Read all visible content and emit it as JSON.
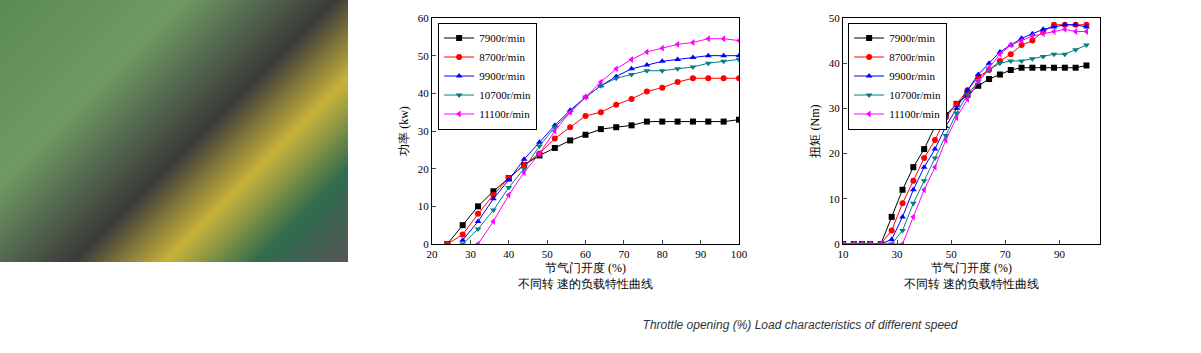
{
  "caption": "Throttle opening (%)  Load characteristics of different speed",
  "chart_data": [
    {
      "type": "line",
      "xlabel": "节气门开度 (%)",
      "subtitle": "不同转 速的负载特性曲线",
      "ylabel": "功率 (kw)",
      "x": [
        24,
        28,
        32,
        36,
        40,
        44,
        48,
        52,
        56,
        60,
        64,
        68,
        72,
        76,
        80,
        84,
        88,
        92,
        96,
        100
      ],
      "xlim": [
        20,
        100
      ],
      "xticks": [
        20,
        30,
        40,
        50,
        60,
        70,
        80,
        90,
        100
      ],
      "ylim": [
        0,
        60
      ],
      "yticks": [
        0,
        10,
        20,
        30,
        40,
        50,
        60
      ],
      "legend": "top-left",
      "grid": false,
      "series": [
        {
          "name": "7900r/min",
          "color": "#000000",
          "marker": "square",
          "values": [
            0,
            5,
            10,
            14,
            17.5,
            21,
            23.5,
            25.5,
            27.5,
            29,
            30.5,
            31,
            31.5,
            32.5,
            32.5,
            32.5,
            32.5,
            32.5,
            32.5,
            33
          ]
        },
        {
          "name": "8700r/min",
          "color": "#ff0000",
          "marker": "circle",
          "values": [
            0,
            2.5,
            8,
            13,
            17.5,
            21,
            24,
            28,
            31,
            34,
            35,
            37,
            38.5,
            40.5,
            41.5,
            43,
            44,
            44,
            44,
            44
          ]
        },
        {
          "name": "9900r/min",
          "color": "#0000ff",
          "marker": "triangle-up",
          "values": [
            null,
            1,
            6,
            12,
            17,
            22.5,
            27,
            31.5,
            35.5,
            39,
            42,
            44.5,
            46.5,
            47.5,
            48.5,
            49,
            49.5,
            50,
            50,
            50
          ]
        },
        {
          "name": "10700r/min",
          "color": "#008080",
          "marker": "triangle-down",
          "values": [
            null,
            0,
            4,
            9,
            15,
            20,
            26,
            31,
            35,
            39,
            42,
            44,
            45,
            46,
            46,
            46.5,
            47,
            48,
            48.5,
            49
          ]
        },
        {
          "name": "11100r/min",
          "color": "#ff00ff",
          "marker": "triangle-left",
          "values": [
            null,
            null,
            0,
            6,
            13,
            19,
            24,
            30,
            35,
            39,
            43,
            46.5,
            49,
            51,
            52,
            53,
            53.5,
            54.5,
            54.5,
            54
          ]
        }
      ]
    },
    {
      "type": "line",
      "xlabel": "节气门开度 (%)",
      "subtitle": "不同转 速的负载特性曲线",
      "ylabel": "扭矩 (Nm)",
      "x": [
        10,
        14,
        17,
        20,
        24,
        28,
        32,
        36,
        40,
        44,
        48,
        52,
        56,
        60,
        64,
        68,
        72,
        76,
        80,
        84,
        88,
        92,
        96,
        100
      ],
      "xlim": [
        10,
        105
      ],
      "xticks": [
        10,
        30,
        50,
        70,
        90
      ],
      "ylim": [
        0,
        50
      ],
      "yticks": [
        0,
        10,
        20,
        30,
        40,
        50
      ],
      "legend": "top-left",
      "grid": false,
      "series": [
        {
          "name": "7900r/min",
          "color": "#000000",
          "marker": "square",
          "values": [
            0,
            0,
            0,
            0,
            0,
            6,
            12,
            17,
            21,
            26,
            28.5,
            31,
            33,
            35,
            36.5,
            37.5,
            38.5,
            39,
            39,
            39,
            39,
            39,
            39,
            39.5
          ]
        },
        {
          "name": "8700r/min",
          "color": "#ff0000",
          "marker": "circle",
          "values": [
            0,
            0,
            0,
            0,
            0,
            3,
            9,
            14,
            19,
            23,
            28,
            31,
            34,
            37,
            38.5,
            40.5,
            42,
            44,
            45,
            47,
            48.5,
            48.5,
            48.5,
            48.5
          ]
        },
        {
          "name": "9900r/min",
          "color": "#0000ff",
          "marker": "triangle-up",
          "values": [
            0,
            0,
            0,
            0,
            0,
            1,
            6,
            12,
            17,
            21,
            26,
            30,
            34,
            37.5,
            40,
            42.5,
            44,
            45.5,
            46.5,
            47.5,
            48,
            48.5,
            48.5,
            48
          ]
        },
        {
          "name": "10700r/min",
          "color": "#008080",
          "marker": "triangle-down",
          "values": [
            0,
            0,
            0,
            0,
            0,
            0,
            3,
            9,
            14,
            19,
            24,
            29,
            33,
            36,
            38.5,
            40,
            40.5,
            40.5,
            41,
            41.5,
            42,
            42,
            43,
            44
          ]
        },
        {
          "name": "11100r/min",
          "color": "#ff00ff",
          "marker": "triangle-left",
          "values": [
            0,
            0,
            0,
            0,
            0,
            0,
            0,
            6,
            12,
            17,
            23,
            28,
            32,
            36,
            39,
            42,
            44,
            45,
            46,
            46.5,
            47,
            47.5,
            47,
            47
          ]
        }
      ]
    }
  ]
}
